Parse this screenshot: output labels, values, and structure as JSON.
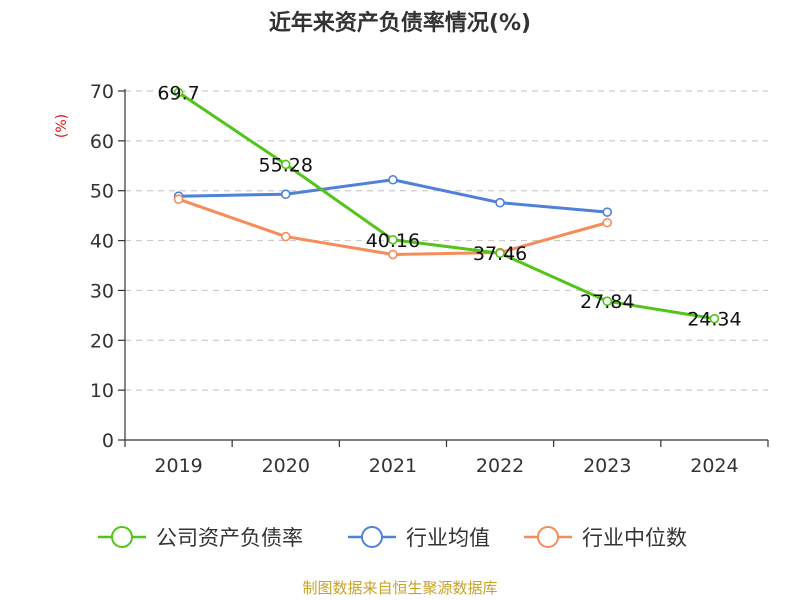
{
  "chart_data": {
    "type": "line",
    "title": "近年来资产负债率情况(%)",
    "ylabel": "(%)",
    "xlabel": "",
    "categories": [
      "2019",
      "2020",
      "2021",
      "2022",
      "2023",
      "2024"
    ],
    "ylim": [
      0,
      70
    ],
    "yticks": [
      0,
      10,
      20,
      30,
      40,
      50,
      60,
      70
    ],
    "grid": true,
    "legend_position": "bottom",
    "series": [
      {
        "name": "公司资产负债率",
        "color": "#52c41a",
        "values": [
          69.7,
          55.28,
          40.16,
          37.46,
          27.84,
          24.34
        ],
        "labels": [
          "69.7",
          "55.28",
          "40.16",
          "37.46",
          "27.84",
          "24.34"
        ]
      },
      {
        "name": "行业均值",
        "color": "#4f81d8",
        "values": [
          48.9,
          49.3,
          52.2,
          47.6,
          45.7,
          null
        ]
      },
      {
        "name": "行业中位数",
        "color": "#f58c5a",
        "values": [
          48.3,
          40.8,
          37.2,
          37.6,
          43.6,
          null
        ]
      }
    ]
  },
  "source_text": "制图数据来自恒生聚源数据库"
}
